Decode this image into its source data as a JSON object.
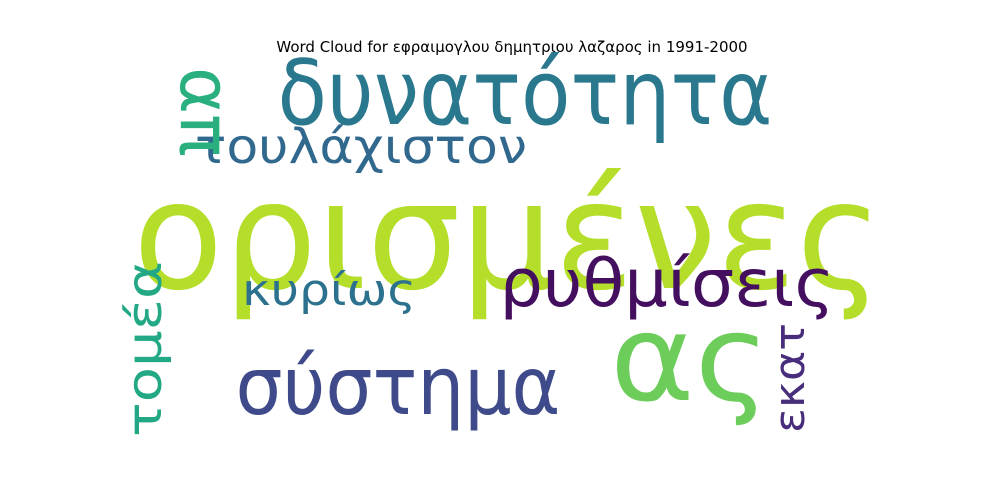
{
  "title": "Word Cloud for εφραιμογλου δημητριου λαζαρος in 1991-2000",
  "words": [
    {
      "text": "ορισμένες",
      "color": "#b5de2b"
    },
    {
      "text": "δυνατότητα",
      "color": "#2a788e"
    },
    {
      "text": "ας",
      "color": "#6ccd5a"
    },
    {
      "text": "σύστημα",
      "color": "#3e4a89"
    },
    {
      "text": "ρυθμίσεις",
      "color": "#440f5e"
    },
    {
      "text": "τουλάχιστον",
      "color": "#31688e"
    },
    {
      "text": "απ",
      "color": "#2ab07f"
    },
    {
      "text": "τομέα",
      "color": "#22a884"
    },
    {
      "text": "κυρίως",
      "color": "#2c728e"
    },
    {
      "text": "εκατ",
      "color": "#472d7b"
    }
  ]
}
